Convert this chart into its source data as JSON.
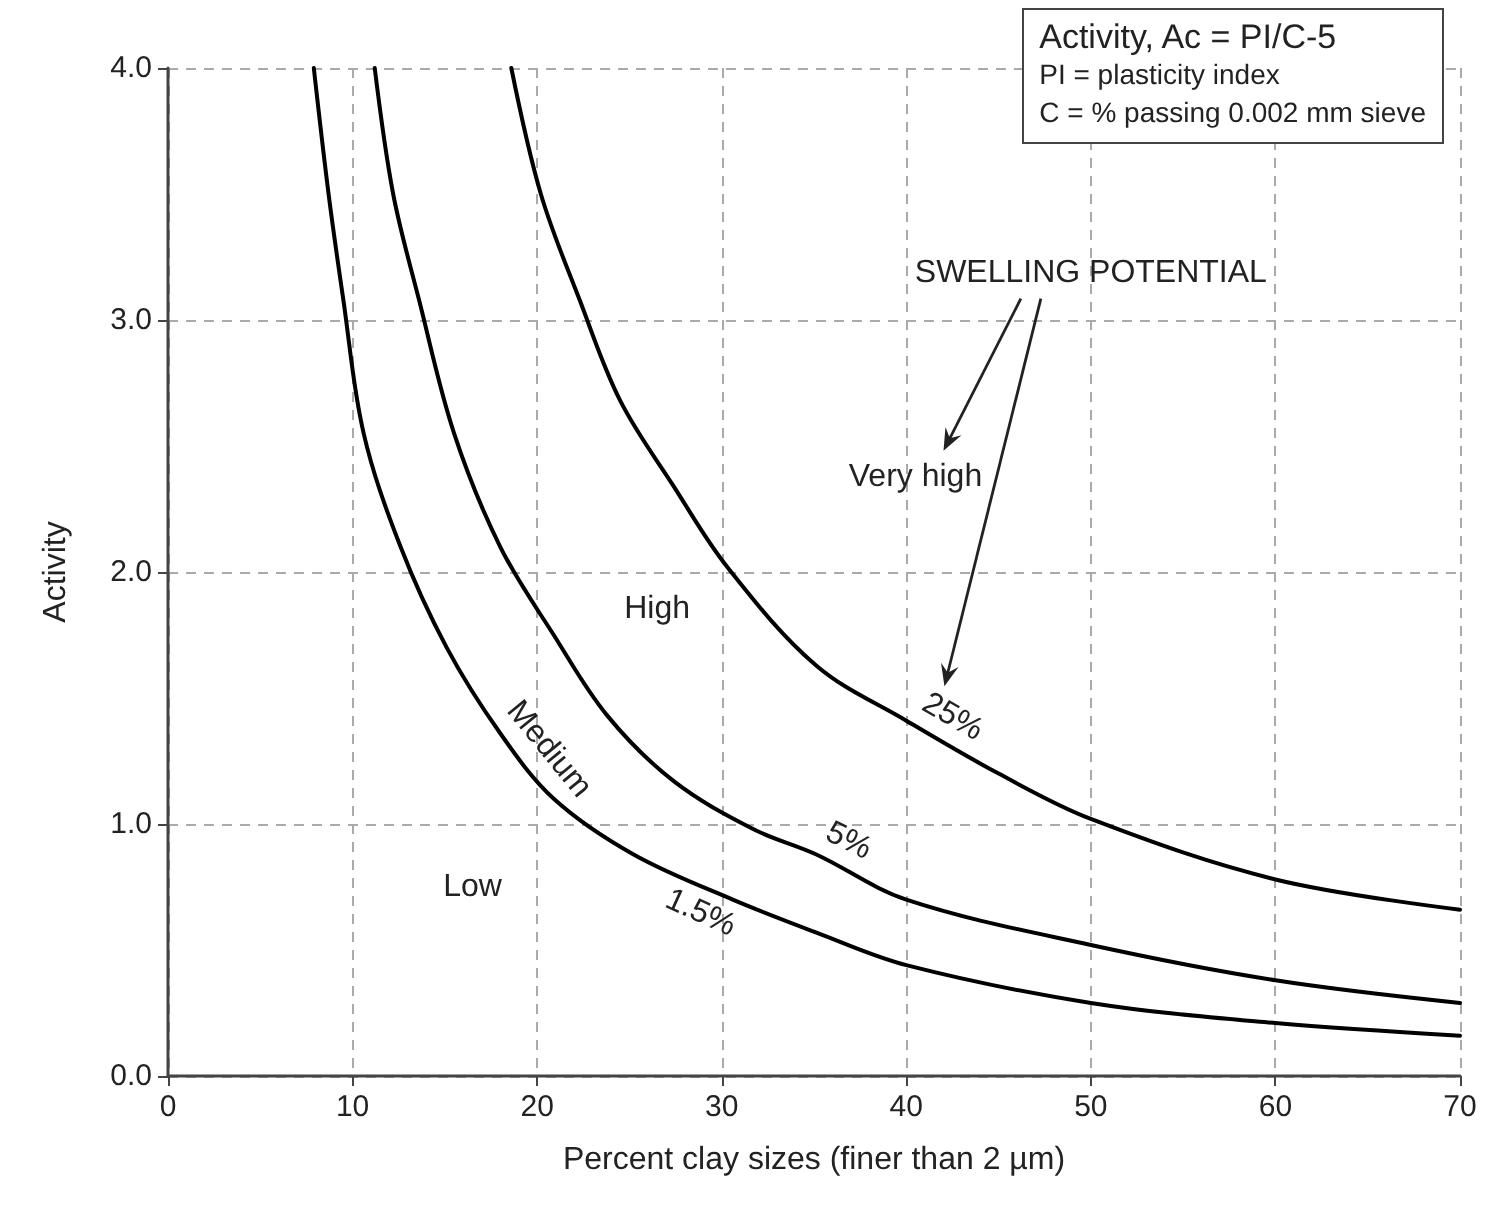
{
  "chart_data": {
    "type": "line",
    "xlabel": "Percent clay sizes (finer than 2 µm)",
    "ylabel": "Activity",
    "xlim": [
      0,
      70
    ],
    "xticks": [
      0,
      10,
      20,
      30,
      40,
      50,
      60,
      70
    ],
    "ylim": [
      0,
      4
    ],
    "yticks": [
      {
        "value": 0,
        "label": "0.0"
      },
      {
        "value": 1,
        "label": "1.0"
      },
      {
        "value": 2,
        "label": "2.0"
      },
      {
        "value": 3,
        "label": "3.0"
      },
      {
        "value": 4,
        "label": "4.0"
      }
    ],
    "grid": true,
    "marker": "none",
    "line_style": "solid",
    "series": [
      {
        "color": "#000000",
        "x": [
          7.9,
          8.7,
          9.5,
          10.6,
          12.6,
          15.1,
          18,
          20.9,
          25.2,
          30.6,
          35.1,
          40,
          50,
          60,
          70
        ],
        "values": [
          4.0,
          3.5,
          3.08,
          2.55,
          2.1,
          1.7,
          1.36,
          1.1,
          0.88,
          0.7,
          0.57,
          0.44,
          0.29,
          0.21,
          0.16
        ]
      },
      {
        "color": "#000000",
        "x": [
          11.2,
          12.2,
          13.6,
          15.5,
          18,
          20.9,
          23.8,
          27.4,
          31.7,
          35.1,
          40,
          50,
          60,
          70
        ],
        "values": [
          4.0,
          3.5,
          3.08,
          2.55,
          2.1,
          1.75,
          1.43,
          1.17,
          0.98,
          0.88,
          0.7,
          0.52,
          0.38,
          0.29
        ]
      },
      {
        "color": "#000000",
        "x": [
          18.6,
          20.2,
          22.3,
          24.5,
          27.4,
          30.3,
          35.1,
          40,
          45,
          50,
          60,
          70
        ],
        "values": [
          4.0,
          3.5,
          3.08,
          2.68,
          2.34,
          2.02,
          1.63,
          1.41,
          1.2,
          1.02,
          0.78,
          0.66
        ]
      }
    ],
    "annotations": [
      "Activity, Ac = PI/C-5",
      "PI = plasticity index",
      "C = % passing 0.002 mm sieve",
      "SWELLING POTENTIAL",
      "Very high",
      "High",
      "Low",
      {
        "text": "Medium",
        "x": 19.5,
        "y": 1.23
      },
      {
        "text": "5%",
        "x": 36.2,
        "y": 0.84
      },
      {
        "text": "25%",
        "x": 41.8,
        "y": 1.33
      },
      {
        "text": "1.5%",
        "x": 29.4,
        "y": 0.74
      }
    ]
  }
}
